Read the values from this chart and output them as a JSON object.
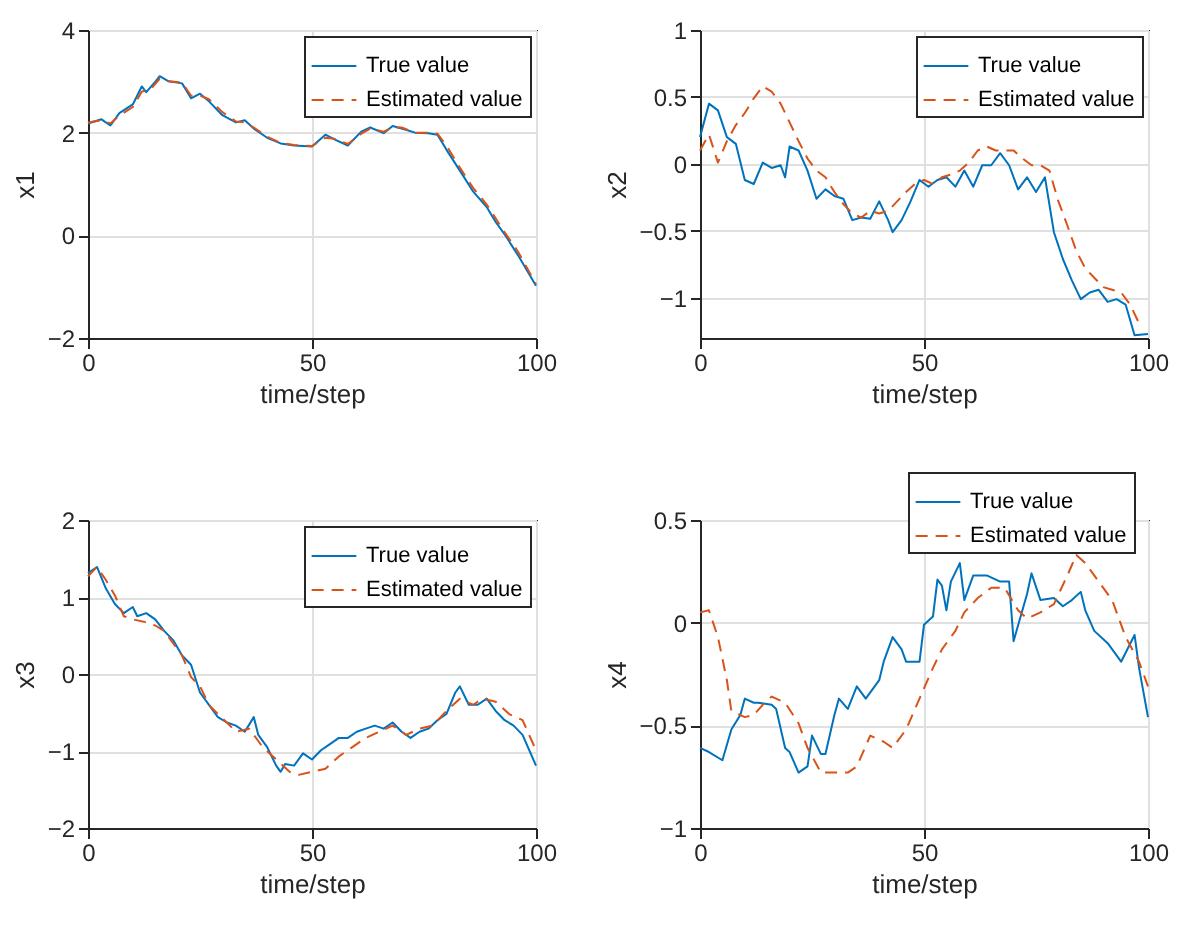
{
  "chart_data": [
    {
      "type": "line",
      "xlabel": "time/step",
      "ylabel": "x1",
      "xlim": [
        0,
        100
      ],
      "xticks": [
        0,
        50,
        100
      ],
      "ylim": [
        -2,
        4
      ],
      "yticks": [
        -2,
        0,
        2,
        4
      ],
      "grid": true,
      "legend": "top right",
      "series": [
        {
          "name": "True value",
          "color": "#0072bd",
          "line_style": "solid",
          "x": [
            0,
            3,
            5,
            7,
            10,
            12,
            13,
            15,
            16,
            18,
            21,
            23,
            25,
            27,
            30,
            33,
            35,
            37,
            40,
            43,
            46,
            50,
            53,
            55,
            58,
            61,
            63,
            66,
            68,
            70,
            73,
            76,
            78,
            80,
            83,
            86,
            89,
            91,
            93,
            96,
            100
          ],
          "values": [
            2.18,
            2.26,
            2.14,
            2.38,
            2.55,
            2.9,
            2.79,
            2.99,
            3.1,
            3.0,
            2.96,
            2.67,
            2.76,
            2.61,
            2.34,
            2.2,
            2.24,
            2.08,
            1.9,
            1.79,
            1.75,
            1.73,
            1.96,
            1.87,
            1.75,
            2.02,
            2.1,
            1.99,
            2.13,
            2.08,
            2.0,
            1.99,
            1.96,
            1.67,
            1.26,
            0.85,
            0.55,
            0.26,
            0.02,
            -0.39,
            -0.98
          ]
        },
        {
          "name": "Estimated value",
          "color": "#d95319",
          "line_style": "dashed",
          "x": [
            0,
            3,
            5,
            7,
            10,
            12,
            14,
            16,
            18,
            21,
            23,
            25,
            27,
            30,
            33,
            35,
            37,
            40,
            43,
            46,
            50,
            53,
            55,
            58,
            61,
            63,
            66,
            68,
            70,
            73,
            76,
            78,
            80,
            83,
            86,
            89,
            91,
            93,
            96,
            100
          ],
          "values": [
            2.2,
            2.24,
            2.18,
            2.33,
            2.5,
            2.8,
            2.85,
            3.05,
            3.0,
            2.98,
            2.72,
            2.72,
            2.65,
            2.4,
            2.22,
            2.2,
            2.1,
            1.92,
            1.8,
            1.76,
            1.74,
            1.9,
            1.88,
            1.78,
            1.98,
            2.08,
            2.02,
            2.1,
            2.1,
            2.0,
            2.0,
            1.98,
            1.75,
            1.32,
            0.92,
            0.6,
            0.33,
            0.06,
            -0.32,
            -0.95
          ]
        }
      ]
    },
    {
      "type": "line",
      "xlabel": "time/step",
      "ylabel": "x2",
      "xlim": [
        0,
        100
      ],
      "xticks": [
        0,
        50,
        100
      ],
      "ylim": [
        -1.3,
        1
      ],
      "yticks": [
        -1,
        -0.5,
        0,
        0.5,
        1
      ],
      "grid": true,
      "legend": "top right",
      "series": [
        {
          "name": "True value",
          "color": "#0072bd",
          "line_style": "solid",
          "x": [
            0,
            2,
            4,
            6,
            8,
            10,
            12,
            14,
            16,
            18,
            19,
            20,
            22,
            24,
            26,
            28,
            30,
            32,
            34,
            36,
            38,
            40,
            42,
            43,
            45,
            47,
            49,
            51,
            53,
            55,
            57,
            59,
            61,
            63,
            65,
            67,
            69,
            71,
            73,
            75,
            77,
            79,
            81,
            83,
            85,
            87,
            89,
            91,
            93,
            95,
            97,
            100
          ],
          "values": [
            0.2,
            0.45,
            0.4,
            0.2,
            0.15,
            -0.12,
            -0.15,
            0.01,
            -0.03,
            -0.01,
            -0.1,
            0.13,
            0.1,
            -0.05,
            -0.26,
            -0.19,
            -0.24,
            -0.26,
            -0.42,
            -0.4,
            -0.41,
            -0.28,
            -0.42,
            -0.51,
            -0.42,
            -0.28,
            -0.12,
            -0.17,
            -0.12,
            -0.1,
            -0.17,
            -0.05,
            -0.17,
            -0.01,
            -0.01,
            0.08,
            -0.01,
            -0.19,
            -0.1,
            -0.21,
            -0.1,
            -0.51,
            -0.71,
            -0.87,
            -1.01,
            -0.96,
            -0.94,
            -1.03,
            -1.01,
            -1.05,
            -1.28,
            -1.27
          ]
        },
        {
          "name": "Estimated value",
          "color": "#d95319",
          "line_style": "dashed",
          "x": [
            0,
            2,
            4,
            6,
            8,
            10,
            12,
            14,
            16,
            18,
            20,
            22,
            24,
            26,
            28,
            30,
            32,
            34,
            36,
            38,
            40,
            42,
            44,
            46,
            48,
            50,
            52,
            54,
            56,
            58,
            60,
            62,
            64,
            66,
            68,
            70,
            72,
            74,
            76,
            78,
            80,
            82,
            84,
            86,
            88,
            90,
            92,
            94,
            96,
            98
          ],
          "values": [
            0.1,
            0.22,
            0.01,
            0.17,
            0.29,
            0.38,
            0.49,
            0.58,
            0.54,
            0.45,
            0.31,
            0.17,
            0.04,
            -0.05,
            -0.1,
            -0.21,
            -0.3,
            -0.37,
            -0.4,
            -0.35,
            -0.37,
            -0.35,
            -0.28,
            -0.21,
            -0.15,
            -0.12,
            -0.15,
            -0.1,
            -0.08,
            -0.05,
            0.01,
            0.1,
            0.13,
            0.1,
            0.1,
            0.1,
            0.04,
            -0.01,
            -0.01,
            -0.05,
            -0.28,
            -0.46,
            -0.65,
            -0.78,
            -0.85,
            -0.92,
            -0.94,
            -0.96,
            -1.05,
            -1.19
          ]
        }
      ]
    },
    {
      "type": "line",
      "xlabel": "time/step",
      "ylabel": "x3",
      "xlim": [
        0,
        100
      ],
      "xticks": [
        0,
        50,
        100
      ],
      "ylim": [
        -2,
        2
      ],
      "yticks": [
        -2,
        -1,
        0,
        1,
        2
      ],
      "grid": true,
      "legend": "top right",
      "series": [
        {
          "name": "True value",
          "color": "#0072bd",
          "line_style": "solid",
          "x": [
            0,
            2,
            4,
            6,
            8,
            10,
            11,
            13,
            15,
            17,
            19,
            21,
            23,
            25,
            27,
            29,
            31,
            33,
            35,
            37,
            38,
            40,
            42,
            43,
            44,
            46,
            48,
            50,
            52,
            54,
            56,
            58,
            60,
            62,
            64,
            66,
            68,
            70,
            72,
            74,
            76,
            78,
            80,
            82,
            83,
            85,
            87,
            89,
            91,
            93,
            95,
            97,
            100
          ],
          "values": [
            1.31,
            1.39,
            1.11,
            0.91,
            0.79,
            0.87,
            0.75,
            0.79,
            0.71,
            0.56,
            0.44,
            0.24,
            0.12,
            -0.24,
            -0.4,
            -0.56,
            -0.63,
            -0.67,
            -0.75,
            -0.56,
            -0.79,
            -0.95,
            -1.19,
            -1.27,
            -1.17,
            -1.19,
            -1.03,
            -1.11,
            -0.99,
            -0.91,
            -0.83,
            -0.83,
            -0.75,
            -0.71,
            -0.67,
            -0.71,
            -0.63,
            -0.75,
            -0.83,
            -0.75,
            -0.71,
            -0.6,
            -0.52,
            -0.24,
            -0.16,
            -0.4,
            -0.4,
            -0.32,
            -0.48,
            -0.6,
            -0.67,
            -0.79,
            -1.19
          ]
        },
        {
          "name": "Estimated value",
          "color": "#d95319",
          "line_style": "dashed",
          "x": [
            0,
            2,
            4,
            6,
            8,
            10,
            13,
            15,
            17,
            19,
            21,
            23,
            25,
            27,
            29,
            31,
            33,
            36,
            39,
            42,
            45,
            47,
            50,
            53,
            56,
            59,
            62,
            65,
            68,
            71,
            74,
            77,
            80,
            83,
            86,
            88,
            91,
            94,
            97,
            100
          ],
          "values": [
            1.27,
            1.39,
            1.22,
            1.02,
            0.75,
            0.71,
            0.67,
            0.63,
            0.56,
            0.4,
            0.24,
            -0.04,
            -0.16,
            -0.4,
            -0.52,
            -0.63,
            -0.75,
            -0.71,
            -0.95,
            -1.11,
            -1.27,
            -1.31,
            -1.27,
            -1.23,
            -1.07,
            -0.95,
            -0.83,
            -0.75,
            -0.67,
            -0.79,
            -0.71,
            -0.67,
            -0.48,
            -0.32,
            -0.4,
            -0.32,
            -0.36,
            -0.52,
            -0.6,
            -0.99
          ]
        }
      ]
    },
    {
      "type": "line",
      "xlabel": "time/step",
      "ylabel": "x4",
      "xlim": [
        0,
        100
      ],
      "xticks": [
        0,
        50,
        100
      ],
      "ylim": [
        -1,
        0.5
      ],
      "yticks": [
        -1,
        -0.5,
        0,
        0.5
      ],
      "grid": true,
      "legend": "top right",
      "series": [
        {
          "name": "True value",
          "color": "#0072bd",
          "line_style": "solid",
          "x": [
            0,
            2,
            5,
            7,
            9,
            10,
            12,
            13,
            16,
            17,
            19,
            20,
            22,
            24,
            25,
            27,
            28,
            30,
            31,
            33,
            35,
            37,
            40,
            41,
            43,
            45,
            46,
            49,
            50,
            52,
            53,
            54,
            55,
            56,
            58,
            59,
            61,
            64,
            67,
            69,
            70,
            73,
            74,
            76,
            79,
            81,
            83,
            85,
            86,
            88,
            91,
            94,
            97,
            98,
            100
          ],
          "values": [
            -0.61,
            -0.63,
            -0.67,
            -0.52,
            -0.45,
            -0.37,
            -0.39,
            -0.39,
            -0.4,
            -0.42,
            -0.61,
            -0.63,
            -0.73,
            -0.7,
            -0.55,
            -0.64,
            -0.64,
            -0.45,
            -0.37,
            -0.42,
            -0.31,
            -0.37,
            -0.28,
            -0.19,
            -0.07,
            -0.13,
            -0.19,
            -0.19,
            -0.01,
            0.03,
            0.21,
            0.18,
            0.06,
            0.2,
            0.29,
            0.11,
            0.23,
            0.23,
            0.2,
            0.2,
            -0.09,
            0.14,
            0.24,
            0.11,
            0.12,
            0.08,
            0.11,
            0.15,
            0.06,
            -0.04,
            -0.1,
            -0.19,
            -0.06,
            -0.22,
            -0.46
          ]
        },
        {
          "name": "Estimated value",
          "color": "#d95319",
          "line_style": "dashed",
          "x": [
            0,
            2,
            4,
            6,
            7,
            10,
            12,
            14,
            16,
            19,
            22,
            24,
            27,
            30,
            33,
            35,
            38,
            41,
            43,
            46,
            49,
            52,
            54,
            57,
            59,
            62,
            65,
            68,
            71,
            73,
            76,
            79,
            82,
            84,
            86,
            89,
            92,
            95,
            98,
            100
          ],
          "values": [
            0.05,
            0.06,
            -0.07,
            -0.28,
            -0.43,
            -0.46,
            -0.45,
            -0.4,
            -0.36,
            -0.39,
            -0.49,
            -0.61,
            -0.73,
            -0.73,
            -0.73,
            -0.7,
            -0.55,
            -0.58,
            -0.61,
            -0.52,
            -0.37,
            -0.22,
            -0.13,
            -0.04,
            0.05,
            0.12,
            0.17,
            0.17,
            0.06,
            0.02,
            0.05,
            0.09,
            0.23,
            0.33,
            0.29,
            0.2,
            0.11,
            -0.07,
            -0.19,
            -0.31
          ]
        }
      ]
    }
  ]
}
